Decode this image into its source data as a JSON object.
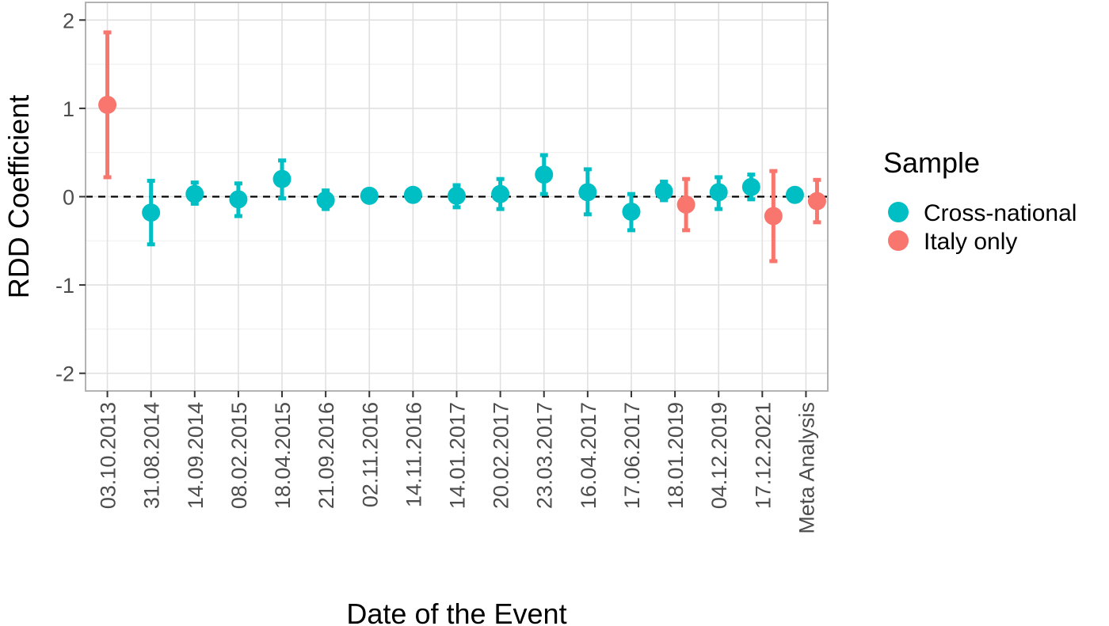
{
  "chart_data": {
    "type": "errorbar",
    "xlabel": "Date of the Event",
    "ylabel": "RDD Coefficient",
    "ylim": [
      -2.2,
      2.2
    ],
    "y_ticks": [
      2,
      1,
      0,
      -1,
      -2
    ],
    "y_tick_labels": [
      "2",
      "1",
      "0",
      "-1",
      "-2"
    ],
    "categories": [
      "03.10.2013",
      "31.08.2014",
      "14.09.2014",
      "08.02.2015",
      "18.04.2015",
      "21.09.2016",
      "02.11.2016",
      "14.11.2016",
      "14.01.2017",
      "20.02.2017",
      "23.03.2017",
      "16.04.2017",
      "17.06.2017",
      "18.01.2019",
      "04.12.2019",
      "17.12.2021",
      "Meta Analysis"
    ],
    "reference_line": {
      "y": 0,
      "style": "dashed",
      "color": "#000000"
    },
    "grid": true,
    "legend": {
      "title": "Sample",
      "position": "right"
    },
    "series": [
      {
        "name": "Cross-national",
        "color": "#00BFC4",
        "points": [
          {
            "category": "31.08.2014",
            "y": -0.18,
            "low": -0.54,
            "high": 0.18
          },
          {
            "category": "14.09.2014",
            "y": 0.03,
            "low": -0.08,
            "high": 0.16
          },
          {
            "category": "08.02.2015",
            "y": -0.03,
            "low": -0.22,
            "high": 0.15
          },
          {
            "category": "18.04.2015",
            "y": 0.2,
            "low": -0.02,
            "high": 0.41
          },
          {
            "category": "21.09.2016",
            "y": -0.04,
            "low": -0.14,
            "high": 0.07
          },
          {
            "category": "02.11.2016",
            "y": 0.01,
            "low": -0.03,
            "high": 0.05
          },
          {
            "category": "14.11.2016",
            "y": 0.02,
            "low": -0.04,
            "high": 0.08
          },
          {
            "category": "14.01.2017",
            "y": 0.01,
            "low": -0.12,
            "high": 0.13
          },
          {
            "category": "20.02.2017",
            "y": 0.03,
            "low": -0.14,
            "high": 0.2
          },
          {
            "category": "23.03.2017",
            "y": 0.25,
            "low": 0.03,
            "high": 0.47
          },
          {
            "category": "16.04.2017",
            "y": 0.05,
            "low": -0.2,
            "high": 0.31
          },
          {
            "category": "17.06.2017",
            "y": -0.17,
            "low": -0.38,
            "high": 0.03
          },
          {
            "category": "18.01.2019",
            "y": 0.06,
            "low": -0.04,
            "high": 0.17
          },
          {
            "category": "04.12.2019",
            "y": 0.05,
            "low": -0.14,
            "high": 0.22
          },
          {
            "category": "17.12.2021",
            "y": 0.11,
            "low": -0.03,
            "high": 0.25
          },
          {
            "category": "Meta Analysis",
            "y": 0.02,
            "low": -0.02,
            "high": 0.06
          }
        ]
      },
      {
        "name": "Italy only",
        "color": "#F8766D",
        "points": [
          {
            "category": "03.10.2013",
            "y": 1.04,
            "low": 0.22,
            "high": 1.86
          },
          {
            "category": "18.01.2019",
            "y": -0.09,
            "low": -0.38,
            "high": 0.2
          },
          {
            "category": "17.12.2021",
            "y": -0.22,
            "low": -0.73,
            "high": 0.29
          },
          {
            "category": "Meta Analysis",
            "y": -0.05,
            "low": -0.29,
            "high": 0.19
          }
        ]
      }
    ]
  }
}
